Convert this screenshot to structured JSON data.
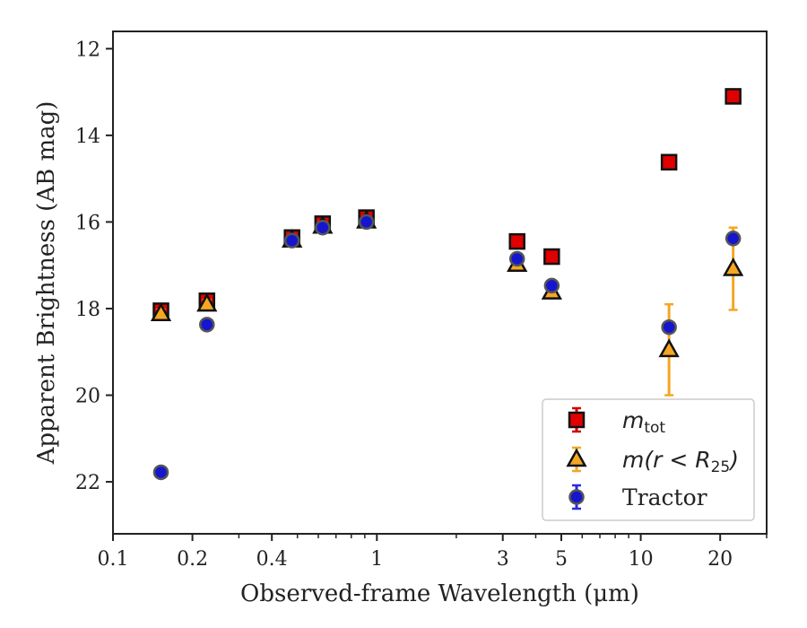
{
  "chart_data": {
    "type": "scatter",
    "xlabel": "Observed-frame Wavelength (μm)",
    "ylabel": "Apparent Brightness (AB mag)",
    "xscale": "log",
    "xlim": [
      0.1,
      30
    ],
    "ylim": [
      23.2,
      11.6
    ],
    "y_inverted": true,
    "grid": false,
    "legend_position": "lower-right",
    "xticks": [
      {
        "value": 0.1,
        "label": "0.1"
      },
      {
        "value": 0.2,
        "label": "0.2"
      },
      {
        "value": 0.4,
        "label": "0.4"
      },
      {
        "value": 1,
        "label": "1"
      },
      {
        "value": 3,
        "label": "3"
      },
      {
        "value": 5,
        "label": "5"
      },
      {
        "value": 10,
        "label": "10"
      },
      {
        "value": 20,
        "label": "20"
      }
    ],
    "xminor": [
      0.3,
      0.5,
      0.6,
      0.7,
      0.8,
      0.9,
      2,
      4,
      6,
      7,
      8,
      9,
      30
    ],
    "yticks": [
      {
        "value": 12,
        "label": "12"
      },
      {
        "value": 14,
        "label": "14"
      },
      {
        "value": 16,
        "label": "16"
      },
      {
        "value": 18,
        "label": "18"
      },
      {
        "value": 20,
        "label": "20"
      },
      {
        "value": 22,
        "label": "22"
      }
    ],
    "series": [
      {
        "key": "mtot",
        "marker": "square",
        "color": "#e00000",
        "edge": "#111111",
        "errcolor": "#d00000",
        "points": [
          {
            "x": 0.152,
            "y": 18.05,
            "err": 0.15
          },
          {
            "x": 0.227,
            "y": 17.82,
            "err": 0.15
          },
          {
            "x": 0.477,
            "y": 16.36,
            "err": 0.12
          },
          {
            "x": 0.623,
            "y": 16.04,
            "err": 0.12
          },
          {
            "x": 0.913,
            "y": 15.9,
            "err": 0.12
          },
          {
            "x": 3.4,
            "y": 16.45,
            "err": 0.05
          },
          {
            "x": 4.6,
            "y": 16.8,
            "err": 0.05
          },
          {
            "x": 12.8,
            "y": 14.62,
            "err": 0.05
          },
          {
            "x": 22.4,
            "y": 13.1,
            "err": 0.05
          }
        ]
      },
      {
        "key": "maper",
        "marker": "triangle",
        "color": "#f5a623",
        "edge": "#111111",
        "errcolor": "#f5a623",
        "points": [
          {
            "x": 0.152,
            "y": 18.12,
            "err": 0.1
          },
          {
            "x": 0.227,
            "y": 17.9,
            "err": 0.1
          },
          {
            "x": 0.477,
            "y": 16.42,
            "err": 0.1
          },
          {
            "x": 0.623,
            "y": 16.1,
            "err": 0.1
          },
          {
            "x": 0.913,
            "y": 15.98,
            "err": 0.1
          },
          {
            "x": 3.4,
            "y": 16.98,
            "err": 0.1
          },
          {
            "x": 4.6,
            "y": 17.62,
            "err": 0.1
          },
          {
            "x": 12.8,
            "y": 18.95,
            "err": 1.05
          },
          {
            "x": 22.4,
            "y": 17.08,
            "err": 0.95
          }
        ]
      },
      {
        "key": "tractor",
        "marker": "circle",
        "color": "#1515d0",
        "edge": "#555555",
        "errcolor": "#2a2ae0",
        "points": [
          {
            "x": 0.152,
            "y": 21.78,
            "err": 0.08
          },
          {
            "x": 0.227,
            "y": 18.37,
            "err": 0.05
          },
          {
            "x": 0.477,
            "y": 16.43,
            "err": 0.08
          },
          {
            "x": 0.623,
            "y": 16.13,
            "err": 0.08
          },
          {
            "x": 0.913,
            "y": 16.0,
            "err": 0.08
          },
          {
            "x": 3.4,
            "y": 16.85,
            "err": 0.08
          },
          {
            "x": 4.6,
            "y": 17.47,
            "err": 0.08
          },
          {
            "x": 12.8,
            "y": 18.43,
            "err": 0.08
          },
          {
            "x": 22.4,
            "y": 16.38,
            "err": 0.08
          }
        ]
      }
    ],
    "legend": [
      {
        "key": "mtot",
        "base": "m",
        "sub": "tot",
        "style": "math"
      },
      {
        "key": "maper",
        "text": "m(r < R",
        "sub": "25",
        "tail": ")",
        "style": "math"
      },
      {
        "key": "tractor",
        "text": "Tractor",
        "style": "serif"
      }
    ]
  }
}
